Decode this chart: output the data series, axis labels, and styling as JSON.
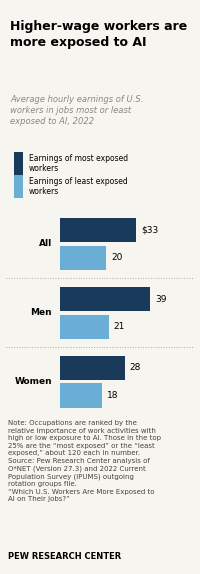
{
  "title": "Higher-wage workers are\nmore exposed to AI",
  "subtitle": "Average hourly earnings of U.S.\nworkers in jobs most or least\nexposed to AI, 2022",
  "categories": [
    "All",
    "Men",
    "Women"
  ],
  "most_exposed": [
    33,
    39,
    28
  ],
  "least_exposed": [
    20,
    21,
    18
  ],
  "most_exposed_label": [
    "$33",
    "39",
    "28"
  ],
  "least_exposed_label": [
    "20",
    "21",
    "18"
  ],
  "color_most": "#1a3a5c",
  "color_least": "#6aaed6",
  "legend_most": "Earnings of most exposed\nworkers",
  "legend_least": "Earnings of least exposed\nworkers",
  "note": "Note: Occupations are ranked by the\nrelative importance of work activities with\nhigh or low exposure to AI. Those in the top\n25% are the “most exposed” or the “least\nexposed,” about 120 each in number.\nSource: Pew Research Center analysis of\nO*NET (Version 27.3) and 2022 Current\nPopulation Survey (IPUMS) outgoing\nrotation groups file.\n“Which U.S. Workers Are More Exposed to\nAI on Their Jobs?”",
  "footer": "PEW RESEARCH CENTER",
  "background_color": "#f7f5ef",
  "max_value": 45
}
